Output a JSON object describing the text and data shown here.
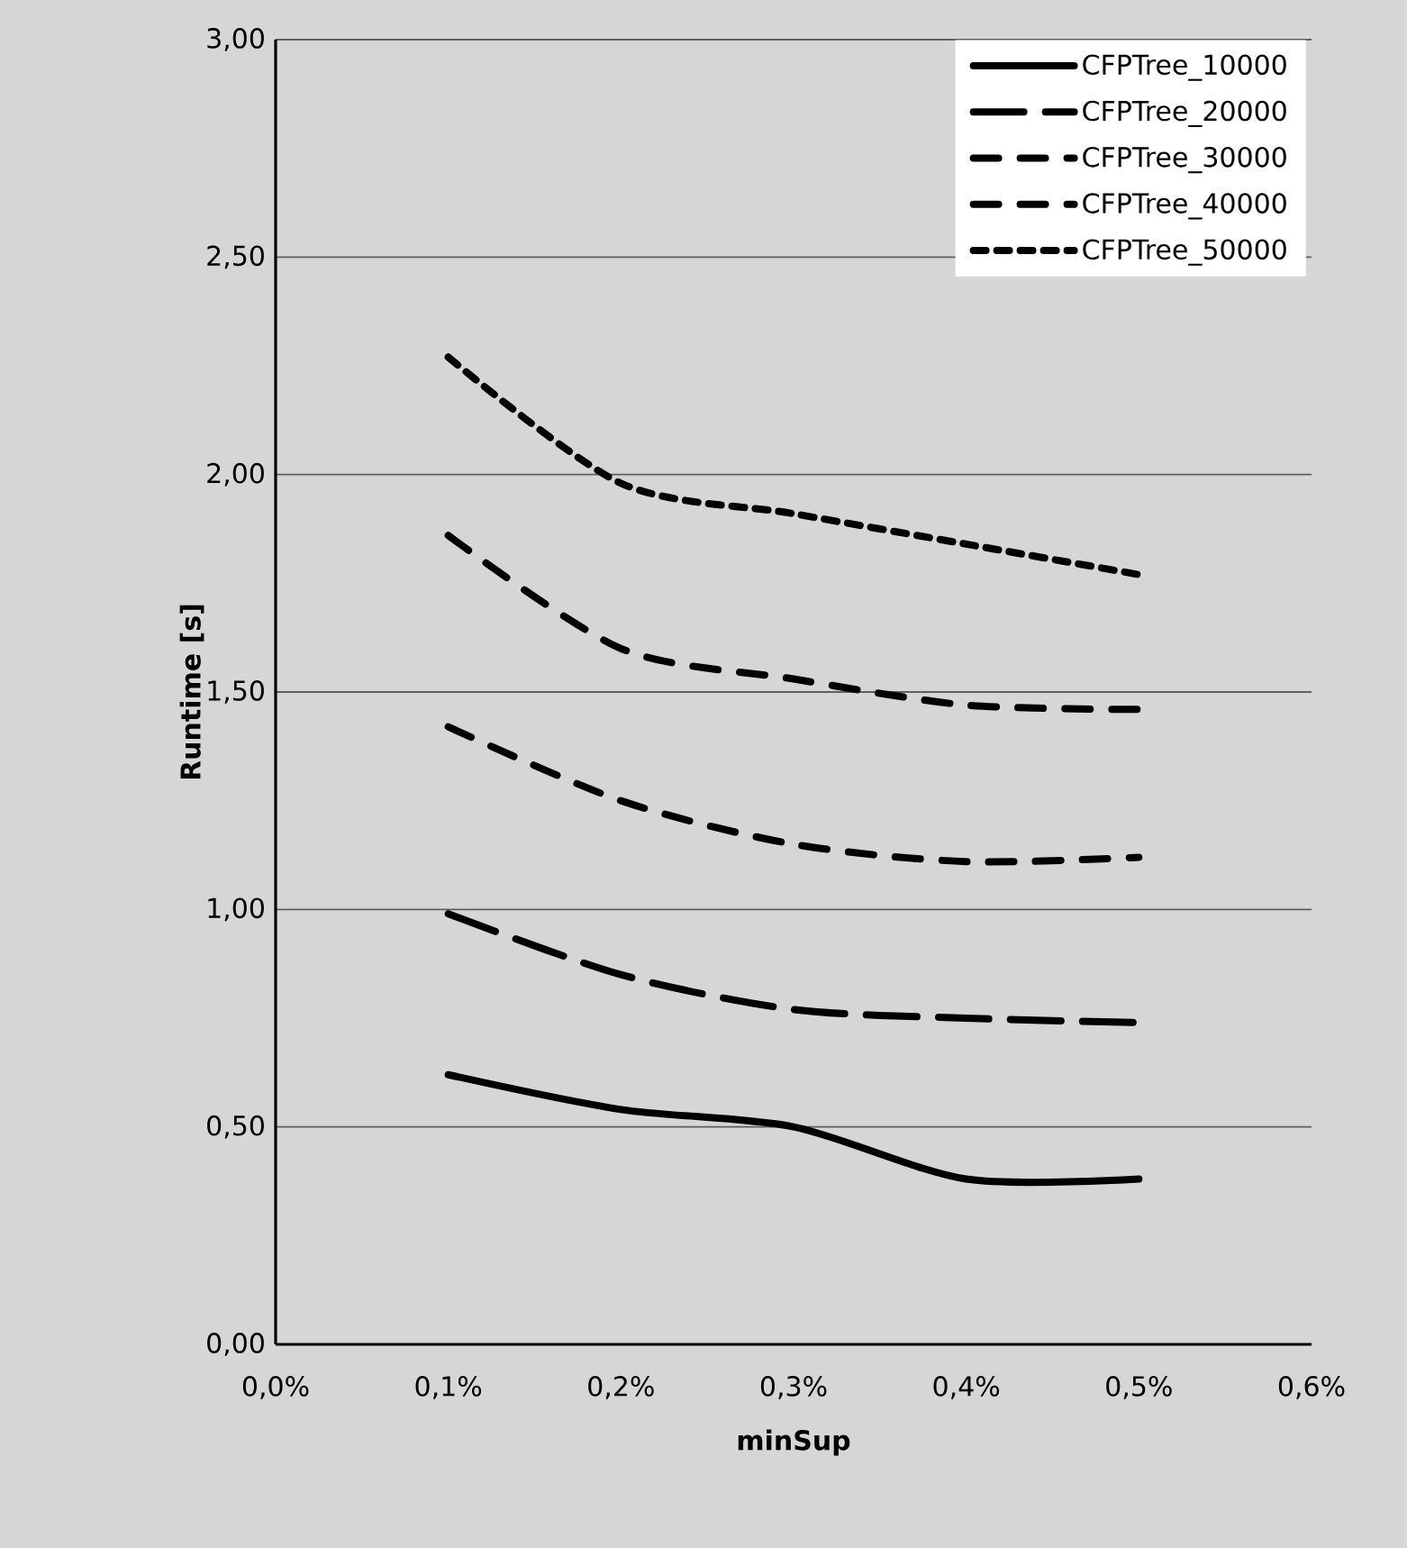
{
  "chart_data": {
    "type": "line",
    "xlabel": "minSup",
    "ylabel": "Runtime [s]",
    "x": [
      0.1,
      0.2,
      0.3,
      0.4,
      0.5
    ],
    "series": [
      {
        "name": "CFPTree_10000",
        "color": "#000000",
        "line_style": "solid",
        "values": [
          0.62,
          0.54,
          0.5,
          0.38,
          0.38
        ]
      },
      {
        "name": "CFPTree_20000",
        "color": "#000000",
        "line_style": "dashed",
        "values": [
          0.99,
          0.85,
          0.77,
          0.75,
          0.74
        ]
      },
      {
        "name": "CFPTree_30000",
        "color": "#000000",
        "line_style": "dashed",
        "values": [
          1.42,
          1.25,
          1.15,
          1.11,
          1.12
        ]
      },
      {
        "name": "CFPTree_40000",
        "color": "#000000",
        "line_style": "dashed",
        "values": [
          1.86,
          1.6,
          1.53,
          1.47,
          1.46
        ]
      },
      {
        "name": "CFPTree_50000",
        "color": "#000000",
        "line_style": "dotted",
        "values": [
          2.27,
          1.98,
          1.91,
          1.84,
          1.77
        ]
      }
    ],
    "xlim": [
      0,
      0.6
    ],
    "xticks": [
      {
        "value": 0,
        "label": "0,0%"
      },
      {
        "value": 0.1,
        "label": "0,1%"
      },
      {
        "value": 0.2,
        "label": "0,2%"
      },
      {
        "value": 0.3,
        "label": "0,3%"
      },
      {
        "value": 0.4,
        "label": "0,4%"
      },
      {
        "value": 0.5,
        "label": "0,5%"
      },
      {
        "value": 0.6,
        "label": "0,6%"
      }
    ],
    "ylim": [
      0,
      3
    ],
    "yticks": [
      {
        "value": 0,
        "label": "0,00"
      },
      {
        "value": 0.5,
        "label": "0,50"
      },
      {
        "value": 1,
        "label": "1,00"
      },
      {
        "value": 1.5,
        "label": "1,50"
      },
      {
        "value": 2,
        "label": "2,00"
      },
      {
        "value": 2.5,
        "label": "2,50"
      },
      {
        "value": 3,
        "label": "3,00"
      }
    ],
    "grid": "y",
    "legend": "top right",
    "marker": "none"
  }
}
